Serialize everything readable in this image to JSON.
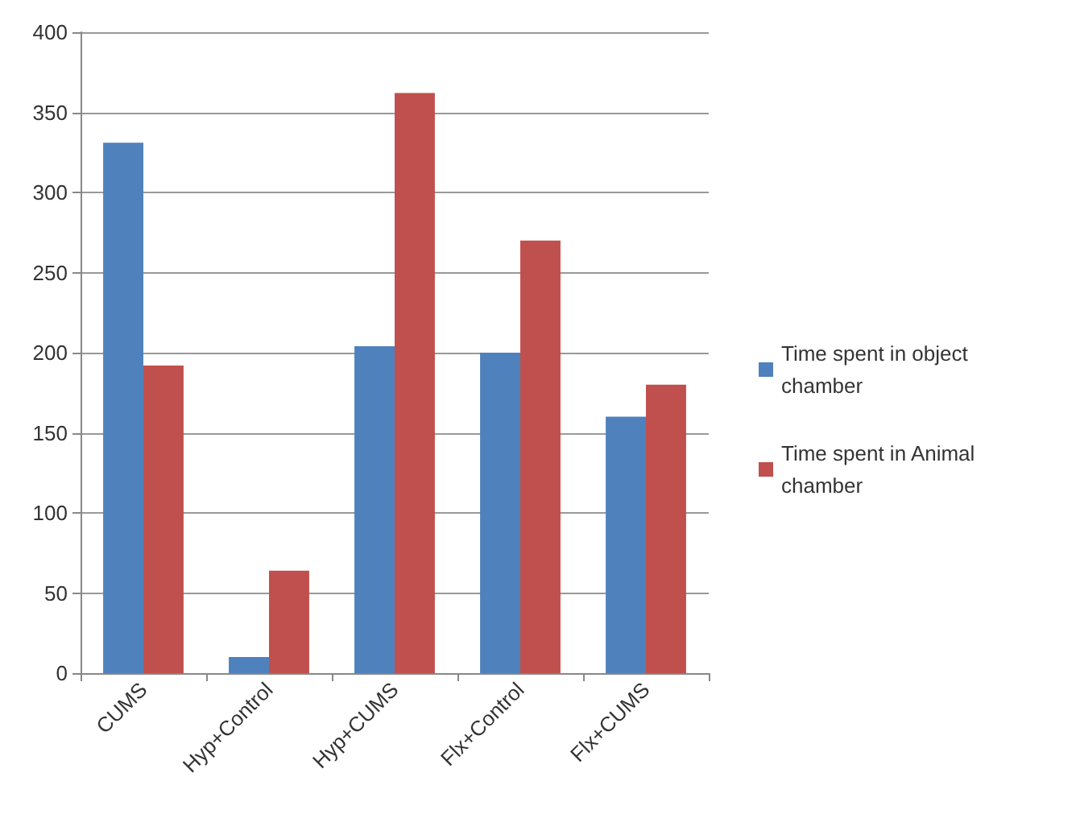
{
  "chart_data": {
    "type": "bar",
    "categories": [
      "CUMS",
      "Hyp+Control",
      "Hyp+CUMS",
      "Flx+Control",
      "Flx+CUMS"
    ],
    "series": [
      {
        "name": "Time spent in object chamber",
        "color": "#4f81bd",
        "values": [
          331,
          10,
          204,
          200,
          160
        ]
      },
      {
        "name": "Time spent in Animal chamber",
        "color": "#c0504d",
        "values": [
          192,
          64,
          362,
          270,
          180
        ]
      }
    ],
    "ylim": [
      0,
      400
    ],
    "yticks": [
      0,
      50,
      100,
      150,
      200,
      250,
      300,
      350,
      400
    ],
    "grid": "y",
    "legend": "right"
  }
}
